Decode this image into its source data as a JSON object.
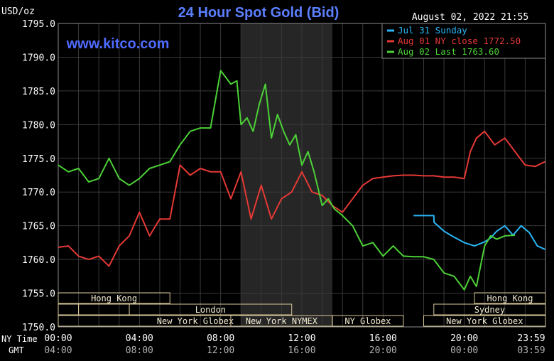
{
  "chart_data": {
    "type": "line",
    "title": "24 Hour Spot Gold (Bid)",
    "ylabel": "USD/oz",
    "timestamp": "August 02, 2022 21:55",
    "watermark": "www.kitco.com",
    "ylim": [
      1750,
      1795
    ],
    "xlim": [
      0,
      24
    ],
    "grid": true,
    "legend_position": "top-right",
    "highlight_band": [
      9,
      13.5
    ],
    "y_ticks": [
      {
        "value": 1795,
        "label": "1795.0"
      },
      {
        "value": 1790,
        "label": "1790.0"
      },
      {
        "value": 1785,
        "label": "1785.0"
      },
      {
        "value": 1780,
        "label": "1780.0"
      },
      {
        "value": 1775,
        "label": "1775.0"
      },
      {
        "value": 1770,
        "label": "1770.0"
      },
      {
        "value": 1765,
        "label": "1765.0"
      },
      {
        "value": 1760,
        "label": "1760.0"
      },
      {
        "value": 1755,
        "label": "1755.0"
      },
      {
        "value": 1750,
        "label": "1750.0"
      }
    ],
    "x_row_labels": {
      "ny": "NY Time",
      "gmt": "GMT"
    },
    "x_ticks": [
      {
        "value": 0,
        "ny": "00:00",
        "gmt": "04:00"
      },
      {
        "value": 4,
        "ny": "04:00",
        "gmt": "08:00"
      },
      {
        "value": 8,
        "ny": "08:00",
        "gmt": "12:00"
      },
      {
        "value": 12,
        "ny": "12:00",
        "gmt": "16:00"
      },
      {
        "value": 16,
        "ny": "16:00",
        "gmt": "20:00"
      },
      {
        "value": 20,
        "ny": "20:00",
        "gmt": "00:00"
      },
      {
        "value": 23.983,
        "ny": "23:59",
        "gmt": "03:59"
      }
    ],
    "sessions": [
      {
        "label": "Hong Kong",
        "start": 0,
        "end": 5.5,
        "row": 0
      },
      {
        "label": "",
        "start": 0,
        "end": 1,
        "row": 1
      },
      {
        "label": "",
        "start": 1,
        "end": 3.5,
        "row": 1
      },
      {
        "label": "London",
        "start": 3.5,
        "end": 11.5,
        "row": 1
      },
      {
        "label": "New York Globex",
        "start": 0,
        "end": 13.5,
        "row": 2
      },
      {
        "label": "New York NYMEX",
        "start": 8.5,
        "end": 13.5,
        "row": 2
      },
      {
        "label": "NY Globex",
        "start": 13.5,
        "end": 17,
        "row": 2
      },
      {
        "label": "Hong Kong",
        "start": 20.5,
        "end": 24,
        "row": 0
      },
      {
        "label": "Sydney",
        "start": 18.5,
        "end": 24,
        "row": 1
      },
      {
        "label": "New York Globex",
        "start": 18,
        "end": 24,
        "row": 2
      }
    ],
    "series": [
      {
        "name": "Jul 31 Sunday",
        "color": "#29b6f6",
        "x": [
          17.5,
          18.5,
          18.51,
          19,
          19.5,
          20,
          20.5,
          21,
          21.3,
          21.6,
          22,
          22.4,
          22.8,
          23.2,
          23.6,
          23.98
        ],
        "y": [
          1766.5,
          1766.5,
          1765.5,
          1764.2,
          1763.3,
          1762.5,
          1762.0,
          1762.6,
          1763.2,
          1764.2,
          1765.0,
          1763.6,
          1765.0,
          1764.0,
          1762.0,
          1761.5
        ]
      },
      {
        "name": "Aug 01 NY close 1772.50",
        "color": "#e53935",
        "x": [
          0,
          0.5,
          1,
          1.5,
          2,
          2.5,
          3,
          3.5,
          4,
          4.5,
          5,
          5.5,
          6,
          6.5,
          7,
          7.5,
          8,
          8.5,
          9,
          9.5,
          10,
          10.5,
          11,
          11.5,
          12,
          12.5,
          13,
          13.5,
          14,
          14.5,
          15,
          15.5,
          16,
          16.5,
          17,
          17.5,
          18,
          18.5,
          19,
          19.5,
          20,
          20.3,
          20.6,
          21,
          21.5,
          22,
          22.5,
          23,
          23.5,
          23.98
        ],
        "y": [
          1761.8,
          1762.0,
          1760.5,
          1760.0,
          1760.5,
          1759.0,
          1762.0,
          1763.5,
          1767.0,
          1763.5,
          1766.0,
          1766.0,
          1774.0,
          1772.5,
          1773.5,
          1773.0,
          1773.0,
          1769.0,
          1773.0,
          1766.0,
          1771.0,
          1766.0,
          1769.0,
          1770.0,
          1773.0,
          1770.0,
          1769.5,
          1768.0,
          1767.0,
          1769.0,
          1771.0,
          1772.0,
          1772.2,
          1772.4,
          1772.5,
          1772.5,
          1772.4,
          1772.4,
          1772.2,
          1772.2,
          1772.0,
          1776.0,
          1778.0,
          1779.0,
          1777.0,
          1778.0,
          1776.0,
          1774.0,
          1773.8,
          1774.5
        ]
      },
      {
        "name": "Aug 02 Last 1763.60",
        "color": "#4cd137",
        "x": [
          0,
          0.5,
          1,
          1.5,
          2,
          2.5,
          3,
          3.5,
          4,
          4.5,
          5,
          5.5,
          6,
          6.5,
          7,
          7.5,
          8,
          8.5,
          8.8,
          9,
          9.3,
          9.6,
          9.9,
          10.2,
          10.5,
          10.8,
          11.1,
          11.4,
          11.7,
          12,
          12.3,
          12.6,
          13,
          13.3,
          13.6,
          14,
          14.5,
          15,
          15.5,
          16,
          16.5,
          17,
          17.5,
          17.99,
          18,
          18.5,
          19,
          19.5,
          20,
          20.3,
          20.6,
          21,
          21.3,
          21.6,
          22,
          22.5
        ],
        "y": [
          1774.0,
          1773.0,
          1773.5,
          1771.5,
          1772.0,
          1775.0,
          1772.0,
          1771.0,
          1772.0,
          1773.5,
          1774.0,
          1774.5,
          1777.0,
          1779.0,
          1779.5,
          1779.5,
          1788.0,
          1786.0,
          1786.5,
          1780.0,
          1781.0,
          1779.0,
          1783.0,
          1786.0,
          1778.0,
          1781.5,
          1779.0,
          1777.0,
          1778.5,
          1774.0,
          1776.0,
          1773.0,
          1768.0,
          1769.0,
          1767.5,
          1766.5,
          1765.0,
          1762.0,
          1762.5,
          1760.5,
          1762.0,
          1760.5,
          1760.4,
          1760.4,
          1760.4,
          1760.0,
          1758.0,
          1757.5,
          1755.5,
          1757.5,
          1756.0,
          1762.0,
          1763.5,
          1763.0,
          1763.5,
          1763.6
        ]
      }
    ]
  }
}
